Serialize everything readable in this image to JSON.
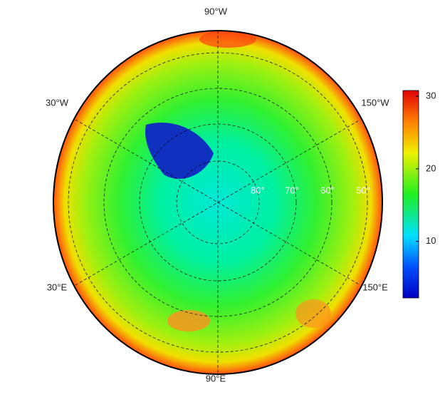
{
  "map": {
    "projection": "north polar stereographic",
    "longitude_labels": [
      "90°W",
      "30°W",
      "150°W",
      "30°E",
      "150°E",
      "90°E"
    ],
    "latitude_labels": [
      "80°",
      "70°",
      "60°",
      "50°"
    ]
  },
  "colorbar": {
    "lim": [
      2.2,
      30.8
    ],
    "ticks": [
      10,
      20,
      30
    ]
  }
}
